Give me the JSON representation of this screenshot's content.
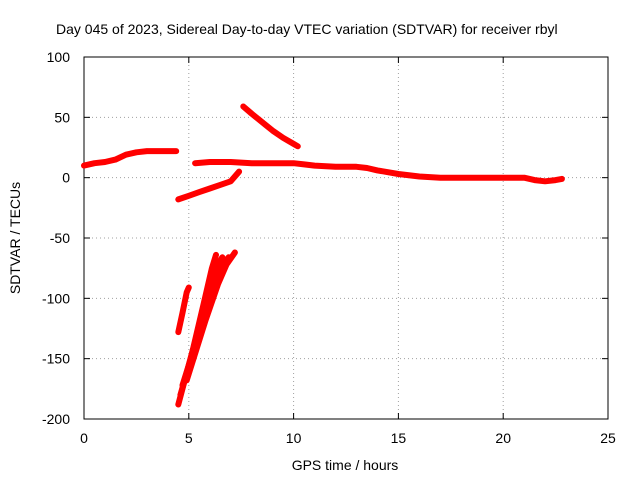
{
  "chart_data": {
    "type": "scatter",
    "title": "Day 045 of 2023, Sidereal Day-to-day VTEC variation (SDTVAR) for receiver rbyl",
    "xlabel": "GPS time / hours",
    "ylabel": "SDTVAR / TECUs",
    "xlim": [
      0,
      25
    ],
    "ylim": [
      -200,
      100
    ],
    "xticks": [
      0,
      5,
      10,
      15,
      20,
      25
    ],
    "yticks": [
      -200,
      -150,
      -100,
      -50,
      0,
      50,
      100
    ],
    "grid": true,
    "color": "#ff0000",
    "series": [
      {
        "points": [
          [
            0,
            10
          ],
          [
            0.5,
            12
          ],
          [
            1,
            13
          ],
          [
            1.5,
            15
          ],
          [
            2,
            19
          ],
          [
            2.5,
            21
          ],
          [
            3,
            22
          ],
          [
            3.5,
            22
          ],
          [
            4,
            22
          ],
          [
            4.4,
            22
          ]
        ]
      },
      {
        "points": [
          [
            5.3,
            12
          ],
          [
            6,
            13
          ],
          [
            7,
            13
          ],
          [
            8,
            12
          ],
          [
            9,
            12
          ],
          [
            10,
            12
          ],
          [
            10.5,
            11
          ],
          [
            11,
            10
          ],
          [
            12,
            9
          ],
          [
            13,
            9
          ],
          [
            13.5,
            8
          ],
          [
            14,
            6
          ],
          [
            15,
            3
          ],
          [
            16,
            1
          ],
          [
            17,
            0
          ],
          [
            18,
            0
          ],
          [
            19,
            0
          ],
          [
            20,
            0
          ],
          [
            21,
            0
          ],
          [
            21.5,
            -2
          ],
          [
            22,
            -3
          ],
          [
            22.5,
            -2
          ],
          [
            22.8,
            -1
          ]
        ]
      },
      {
        "points": [
          [
            4.5,
            -18
          ],
          [
            5,
            -15
          ],
          [
            5.5,
            -12
          ],
          [
            6,
            -9
          ],
          [
            6.5,
            -6
          ],
          [
            7,
            -3
          ],
          [
            7.4,
            5
          ]
        ]
      },
      {
        "points": [
          [
            7.6,
            59
          ],
          [
            8,
            53
          ],
          [
            8.5,
            46
          ],
          [
            9,
            39
          ],
          [
            9.5,
            33
          ],
          [
            10,
            28
          ],
          [
            10.2,
            26
          ]
        ]
      },
      {
        "points": [
          [
            4.5,
            -128
          ],
          [
            4.7,
            -112
          ],
          [
            4.9,
            -95
          ],
          [
            5,
            -91
          ]
        ]
      },
      {
        "points": [
          [
            4.5,
            -188
          ],
          [
            5.2,
            -142
          ],
          [
            5.7,
            -105
          ],
          [
            6.1,
            -75
          ],
          [
            6.3,
            -64
          ]
        ]
      },
      {
        "points": [
          [
            4.6,
            -180
          ],
          [
            5.4,
            -132
          ],
          [
            5.9,
            -98
          ],
          [
            6.3,
            -74
          ],
          [
            6.6,
            -66
          ]
        ]
      },
      {
        "points": [
          [
            4.7,
            -172
          ],
          [
            5.6,
            -122
          ],
          [
            6.1,
            -92
          ],
          [
            6.5,
            -74
          ],
          [
            6.9,
            -66
          ]
        ]
      },
      {
        "points": [
          [
            4.9,
            -168
          ],
          [
            5.8,
            -118
          ],
          [
            6.4,
            -88
          ],
          [
            6.8,
            -72
          ],
          [
            7.2,
            -62
          ]
        ]
      }
    ]
  }
}
